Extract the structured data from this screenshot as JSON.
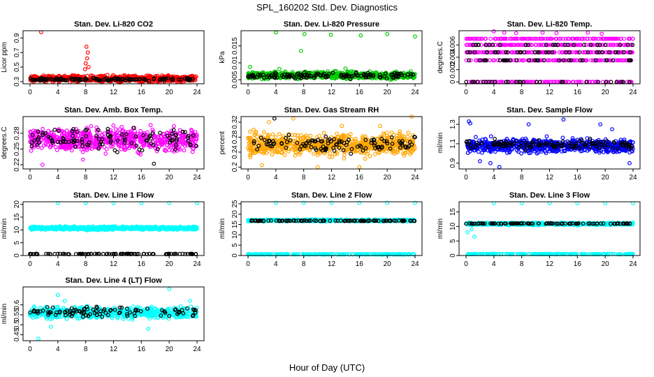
{
  "figure": {
    "title": "SPL_160202  Std. Dev. Diagnostics",
    "xlabel": "Hour of Day (UTC)"
  },
  "chart_data": [
    {
      "type": "scatter",
      "title": "Stan. Dev. Li-820 CO2",
      "ylabel": "Licor ppm",
      "xlim": [
        0,
        24
      ],
      "xticks": [
        0,
        4,
        8,
        12,
        16,
        20,
        24
      ],
      "ylim": [
        0.27,
        1.0
      ],
      "yticks": [
        0.3,
        0.5,
        0.7,
        0.9
      ],
      "grid": false,
      "series": [
        {
          "color": "#ff0000",
          "band": [
            0.28,
            0.4
          ],
          "density": 700,
          "points": [
            [
              1.6,
              0.98
            ],
            [
              8.1,
              0.78
            ],
            [
              8.2,
              0.62
            ],
            [
              8.3,
              0.7
            ],
            [
              8.0,
              0.55
            ],
            [
              8.4,
              0.5
            ],
            [
              7.9,
              0.47
            ]
          ]
        },
        {
          "color": "#000000",
          "band": [
            0.3,
            0.36
          ],
          "density": 130,
          "points": []
        }
      ]
    },
    {
      "type": "scatter",
      "title": "Stan. Dev. Li-820 Pressure",
      "ylabel": "kPa",
      "xlim": [
        0,
        24
      ],
      "xticks": [
        0,
        4,
        8,
        12,
        16,
        20,
        24
      ],
      "ylim": [
        0.0038,
        0.0195
      ],
      "yticks": [
        0.005,
        0.01,
        0.015
      ],
      "grid": false,
      "series": [
        {
          "color": "#00cc00",
          "band": [
            0.0048,
            0.0078
          ],
          "density": 750,
          "points": [
            [
              0.3,
              0.0088
            ],
            [
              4.0,
              0.019
            ],
            [
              7.6,
              0.0135
            ],
            [
              8.1,
              0.0185
            ],
            [
              11.9,
              0.0183
            ],
            [
              16.2,
              0.0181
            ],
            [
              20.0,
              0.0185
            ],
            [
              24.0,
              0.0178
            ],
            [
              4.5,
              0.0082
            ],
            [
              14.0,
              0.0083
            ]
          ]
        },
        {
          "color": "#000000",
          "band": [
            0.005,
            0.0075
          ],
          "density": 130,
          "points": []
        }
      ]
    },
    {
      "type": "scatter",
      "title": "Stan. Dev. Li-820 Temp.",
      "ylabel": "degrees.C",
      "xlim": [
        0,
        24
      ],
      "xticks": [
        0,
        4,
        8,
        12,
        16,
        20,
        24
      ],
      "ylim": [
        -0.0003,
        0.0083
      ],
      "yticks": [
        0.0,
        0.002,
        0.004,
        0.006
      ],
      "grid": false,
      "series": [
        {
          "color": "#ff00ff",
          "levels": [
            0.0,
            0.0035,
            0.0048,
            0.006,
            0.007
          ],
          "density": 700,
          "points": [
            [
              4.0,
              0.0082
            ],
            [
              5.5,
              0.008
            ],
            [
              7.2,
              0.0079
            ],
            [
              11.0,
              0.008
            ],
            [
              13.0,
              0.0079
            ],
            [
              17.5,
              0.008
            ],
            [
              19.5,
              0.0078
            ]
          ]
        },
        {
          "color": "#000000",
          "levels": [
            0.0035,
            0.0048,
            0.006,
            0.0
          ],
          "density": 120,
          "points": []
        }
      ]
    },
    {
      "type": "scatter",
      "title": "Stan. Dev. Amb. Box Temp.",
      "ylabel": "degrees.C",
      "xlim": [
        0,
        24
      ],
      "xticks": [
        0,
        4,
        8,
        12,
        16,
        20,
        24
      ],
      "ylim": [
        0.212,
        0.312
      ],
      "yticks": [
        0.22,
        0.25,
        0.28
      ],
      "grid": false,
      "series": [
        {
          "color": "#ff00ff",
          "band": [
            0.235,
            0.3
          ],
          "density": 650,
          "points": [
            [
              1.8,
              0.22
            ],
            [
              7.6,
              0.23
            ]
          ]
        },
        {
          "color": "#000000",
          "band": [
            0.24,
            0.3
          ],
          "density": 110,
          "points": [
            [
              17.8,
              0.222
            ]
          ]
        }
      ]
    },
    {
      "type": "scatter",
      "title": "Stan. Dev. Gas Stream RH",
      "ylabel": "percent",
      "xlim": [
        0,
        24
      ],
      "xticks": [
        0,
        4,
        8,
        12,
        16,
        20,
        24
      ],
      "ylim": [
        0.195,
        0.335
      ],
      "yticks": [
        0.2,
        0.24,
        0.28,
        0.32
      ],
      "grid": false,
      "series": [
        {
          "color": "#ffa500",
          "band": [
            0.22,
            0.3
          ],
          "density": 700,
          "points": [
            [
              0.8,
              0.3
            ],
            [
              3.0,
              0.32
            ],
            [
              6.5,
              0.33
            ],
            [
              13.5,
              0.31
            ],
            [
              16.0,
              0.2
            ],
            [
              19.0,
              0.31
            ],
            [
              23.5,
              0.335
            ],
            [
              2.0,
              0.205
            ],
            [
              10.0,
              0.2
            ]
          ]
        },
        {
          "color": "#000000",
          "band": [
            0.23,
            0.295
          ],
          "density": 110,
          "points": [
            [
              3.8,
              0.33
            ],
            [
              24.0,
              0.28
            ]
          ]
        }
      ]
    },
    {
      "type": "scatter",
      "title": "Stan. Dev. Sample Flow",
      "ylabel": "ml/min",
      "xlim": [
        0,
        24
      ],
      "xticks": [
        0,
        4,
        8,
        12,
        16,
        20,
        24
      ],
      "ylim": [
        0.84,
        1.38
      ],
      "yticks": [
        0.9,
        1.1,
        1.3
      ],
      "grid": false,
      "series": [
        {
          "color": "#0000ff",
          "band": [
            0.98,
            1.18
          ],
          "density": 700,
          "points": [
            [
              0.4,
              1.33
            ],
            [
              0.6,
              1.31
            ],
            [
              4.8,
              0.86
            ],
            [
              9.0,
              1.3
            ],
            [
              14.0,
              1.35
            ],
            [
              19.3,
              1.3
            ],
            [
              21.0,
              1.25
            ],
            [
              23.5,
              0.9
            ],
            [
              3.5,
              0.9
            ],
            [
              2.0,
              0.92
            ]
          ]
        },
        {
          "color": "#000000",
          "band": [
            1.02,
            1.16
          ],
          "density": 130,
          "points": []
        }
      ]
    },
    {
      "type": "scatter",
      "title": "Stan. Dev. Line 1 Flow",
      "ylabel": "ml/min",
      "xlim": [
        0,
        24
      ],
      "xticks": [
        0,
        4,
        8,
        12,
        16,
        20,
        24
      ],
      "ylim": [
        0,
        21
      ],
      "yticks": [
        0,
        5,
        10,
        15,
        20
      ],
      "grid": false,
      "series": [
        {
          "color": "#00ffff",
          "band": [
            9.8,
            11.6
          ],
          "density": 650,
          "points": [
            [
              4.0,
              20.5
            ],
            [
              8.0,
              20.5
            ],
            [
              12.0,
              20.5
            ],
            [
              16.0,
              20.5
            ],
            [
              20.0,
              20.5
            ],
            [
              24.0,
              20.5
            ],
            [
              0.2,
              10.9
            ]
          ]
        },
        {
          "color": "#000000",
          "line": 0.6,
          "density": 100,
          "points": []
        }
      ]
    },
    {
      "type": "scatter",
      "title": "Stan. Dev. Line 2 Flow",
      "ylabel": "ml/min",
      "xlim": [
        0,
        24
      ],
      "xticks": [
        0,
        4,
        8,
        12,
        16,
        20,
        24
      ],
      "ylim": [
        0,
        26
      ],
      "yticks": [
        0,
        5,
        10,
        15,
        20,
        25
      ],
      "grid": false,
      "series": [
        {
          "color": "#00ffff",
          "band": [
            16.3,
            17.6
          ],
          "density": 600,
          "points": [
            [
              4.0,
              25.5
            ],
            [
              8.0,
              25.5
            ],
            [
              12.0,
              25.5
            ],
            [
              16.0,
              25.5
            ],
            [
              20.0,
              25.5
            ],
            [
              24.0,
              25.5
            ]
          ]
        },
        {
          "color": "#00ffff",
          "line": 0.6,
          "density": 200,
          "points": []
        },
        {
          "color": "#000000",
          "line": 16.8,
          "density": 100,
          "points": []
        }
      ]
    },
    {
      "type": "scatter",
      "title": "Stan. Dev. Line 3 Flow",
      "ylabel": "ml/min",
      "xlim": [
        0,
        24
      ],
      "xticks": [
        0,
        4,
        8,
        12,
        16,
        20,
        24
      ],
      "ylim": [
        0,
        18.5
      ],
      "yticks": [
        0,
        5,
        10,
        15
      ],
      "grid": false,
      "series": [
        {
          "color": "#00ffff",
          "band": [
            10.3,
            11.5
          ],
          "density": 600,
          "points": [
            [
              0.2,
              8.0
            ],
            [
              1.2,
              6.5
            ],
            [
              0.8,
              9.0
            ],
            [
              4.0,
              18
            ],
            [
              8.0,
              18
            ],
            [
              12.0,
              18
            ],
            [
              16.0,
              18
            ],
            [
              20.0,
              18
            ],
            [
              24.0,
              18
            ]
          ]
        },
        {
          "color": "#00ffff",
          "line": 0.5,
          "density": 200,
          "points": []
        },
        {
          "color": "#000000",
          "line": 11.0,
          "density": 100,
          "points": []
        }
      ]
    },
    {
      "type": "scatter",
      "title": "Stan. Dev. Line 4 (LT) Flow",
      "ylabel": "ml/min",
      "xlim": [
        0,
        24
      ],
      "xticks": [
        0,
        4,
        8,
        12,
        16,
        20,
        24
      ],
      "ylim": [
        0.42,
        0.69
      ],
      "yticks": [
        0.45,
        0.5,
        0.55,
        0.6
      ],
      "grid": false,
      "series": [
        {
          "color": "#00ffff",
          "band": [
            0.52,
            0.6
          ],
          "density": 600,
          "points": [
            [
              1.2,
              0.43
            ],
            [
              4.0,
              0.65
            ],
            [
              5.0,
              0.62
            ],
            [
              17.0,
              0.48
            ],
            [
              20.0,
              0.68
            ],
            [
              23.0,
              0.62
            ],
            [
              3.0,
              0.49
            ]
          ]
        },
        {
          "color": "#000000",
          "band": [
            0.53,
            0.6
          ],
          "density": 100,
          "points": []
        }
      ]
    }
  ]
}
